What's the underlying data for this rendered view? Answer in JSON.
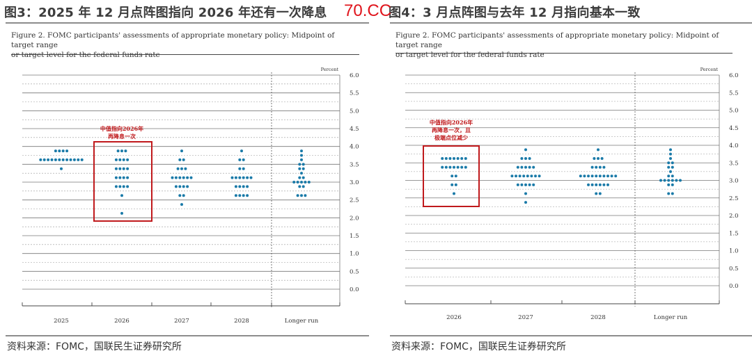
{
  "watermark": "70.CC",
  "panels": [
    {
      "id": "left",
      "title": "图3：2025 年 12 月点阵图指向 2026 年还有一次降息",
      "caption_line1": "Figure 2. FOMC participants' assessments of appropriate monetary policy: Midpoint of target range",
      "caption_line2": "or target level for the federal funds rate",
      "source": "资料来源：FOMC，国联民生证券研究所",
      "annotation_lines": [
        "中值指向2026年",
        "再降息一次"
      ],
      "highlight_color": "#c0191c",
      "chart_data": {
        "type": "scatter",
        "unit_label": "Percent",
        "ylim": [
          0.0,
          6.0
        ],
        "yticks": [
          "0.0",
          "0.5",
          "1.0",
          "1.5",
          "2.0",
          "2.5",
          "3.0",
          "3.5",
          "4.0",
          "4.5",
          "5.0",
          "5.5",
          "6.0"
        ],
        "categories": [
          "2025",
          "2026",
          "2027",
          "2028",
          "Longer run"
        ],
        "dot_color": "#1a7aa8",
        "highlight_category": "2026",
        "dots": [
          {
            "x": "2025",
            "levels": [
              [
                3.875,
                4
              ],
              [
                3.625,
                12
              ],
              [
                3.375,
                1
              ]
            ]
          },
          {
            "x": "2026",
            "levels": [
              [
                3.875,
                3
              ],
              [
                3.625,
                4
              ],
              [
                3.375,
                4
              ],
              [
                3.125,
                4
              ],
              [
                2.875,
                4
              ],
              [
                2.625,
                1
              ],
              [
                2.125,
                1
              ]
            ]
          },
          {
            "x": "2027",
            "levels": [
              [
                3.875,
                1
              ],
              [
                3.625,
                2
              ],
              [
                3.375,
                3
              ],
              [
                3.125,
                6
              ],
              [
                2.875,
                4
              ],
              [
                2.625,
                2
              ],
              [
                2.375,
                1
              ]
            ]
          },
          {
            "x": "2028",
            "levels": [
              [
                3.875,
                1
              ],
              [
                3.625,
                2
              ],
              [
                3.375,
                2
              ],
              [
                3.125,
                6
              ],
              [
                2.875,
                4
              ],
              [
                2.625,
                4
              ]
            ]
          },
          {
            "x": "Longer run",
            "levels": [
              [
                3.875,
                1
              ],
              [
                3.75,
                1
              ],
              [
                3.625,
                1
              ],
              [
                3.5,
                2
              ],
              [
                3.375,
                2
              ],
              [
                3.25,
                1
              ],
              [
                3.125,
                2
              ],
              [
                3.0,
                5
              ],
              [
                2.875,
                2
              ],
              [
                2.625,
                3
              ]
            ]
          }
        ]
      }
    },
    {
      "id": "right",
      "title": "图4：3 月点阵图与去年 12 月指向基本一致",
      "caption_line1": "Figure 2. FOMC participants' assessments of appropriate monetary policy: Midpoint of target range",
      "caption_line2": "or target level for the federal funds rate",
      "source": "资料来源：FOMC，国联民生证券研究所",
      "annotation_lines": [
        "中值指向2026年",
        "再降息一次，且",
        "极端点位减少"
      ],
      "highlight_color": "#c0191c",
      "chart_data": {
        "type": "scatter",
        "unit_label": "Percent",
        "ylim": [
          0.0,
          6.0
        ],
        "yticks": [
          "0.0",
          "0.5",
          "1.0",
          "1.5",
          "2.0",
          "2.5",
          "3.0",
          "3.5",
          "4.0",
          "4.5",
          "5.0",
          "5.5",
          "6.0"
        ],
        "categories": [
          "2026",
          "2027",
          "2028",
          "Longer run"
        ],
        "dot_color": "#1a7aa8",
        "highlight_category": "2026",
        "dots": [
          {
            "x": "2026",
            "levels": [
              [
                3.625,
                7
              ],
              [
                3.375,
                7
              ],
              [
                3.125,
                2
              ],
              [
                2.875,
                2
              ],
              [
                2.625,
                1
              ]
            ]
          },
          {
            "x": "2027",
            "levels": [
              [
                3.875,
                1
              ],
              [
                3.625,
                3
              ],
              [
                3.375,
                5
              ],
              [
                3.125,
                8
              ],
              [
                2.875,
                5
              ],
              [
                2.625,
                1
              ],
              [
                2.375,
                1
              ]
            ]
          },
          {
            "x": "2028",
            "levels": [
              [
                3.875,
                1
              ],
              [
                3.625,
                3
              ],
              [
                3.375,
                4
              ],
              [
                3.125,
                10
              ],
              [
                2.875,
                6
              ],
              [
                2.625,
                2
              ]
            ]
          },
          {
            "x": "Longer run",
            "levels": [
              [
                3.875,
                1
              ],
              [
                3.75,
                1
              ],
              [
                3.625,
                1
              ],
              [
                3.5,
                2
              ],
              [
                3.375,
                2
              ],
              [
                3.25,
                1
              ],
              [
                3.125,
                2
              ],
              [
                3.0,
                6
              ],
              [
                2.875,
                2
              ],
              [
                2.625,
                2
              ]
            ]
          }
        ]
      }
    }
  ]
}
